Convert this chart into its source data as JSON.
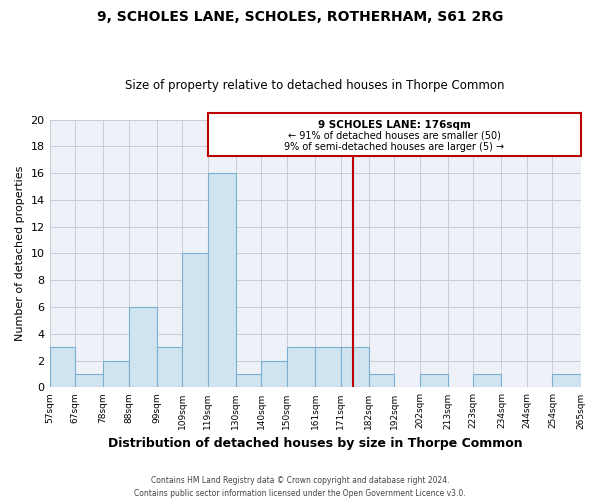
{
  "title": "9, SCHOLES LANE, SCHOLES, ROTHERHAM, S61 2RG",
  "subtitle": "Size of property relative to detached houses in Thorpe Common",
  "xlabel": "Distribution of detached houses by size in Thorpe Common",
  "ylabel": "Number of detached properties",
  "bin_edges": [
    57,
    67,
    78,
    88,
    99,
    109,
    119,
    130,
    140,
    150,
    161,
    171,
    182,
    192,
    202,
    213,
    223,
    234,
    244,
    254,
    265
  ],
  "bin_counts": [
    3,
    1,
    2,
    6,
    3,
    10,
    16,
    1,
    2,
    3,
    3,
    3,
    1,
    0,
    1,
    0,
    1,
    0,
    0,
    1
  ],
  "bar_color": "#d0e4f0",
  "bar_edge_color": "#7aaed0",
  "vline_x": 176,
  "vline_color": "#bb0000",
  "ylim": [
    0,
    20
  ],
  "annotation_title": "9 SCHOLES LANE: 176sqm",
  "annotation_line1": "← 91% of detached houses are smaller (50)",
  "annotation_line2": "9% of semi-detached houses are larger (5) →",
  "footer1": "Contains HM Land Registry data © Crown copyright and database right 2024.",
  "footer2": "Contains public sector information licensed under the Open Government Licence v3.0.",
  "tick_labels": [
    "57sqm",
    "67sqm",
    "78sqm",
    "88sqm",
    "99sqm",
    "109sqm",
    "119sqm",
    "130sqm",
    "140sqm",
    "150sqm",
    "161sqm",
    "171sqm",
    "182sqm",
    "192sqm",
    "202sqm",
    "213sqm",
    "223sqm",
    "234sqm",
    "244sqm",
    "254sqm",
    "265sqm"
  ],
  "bg_color": "#eef2f8",
  "grid_color": "#c8ccd8"
}
